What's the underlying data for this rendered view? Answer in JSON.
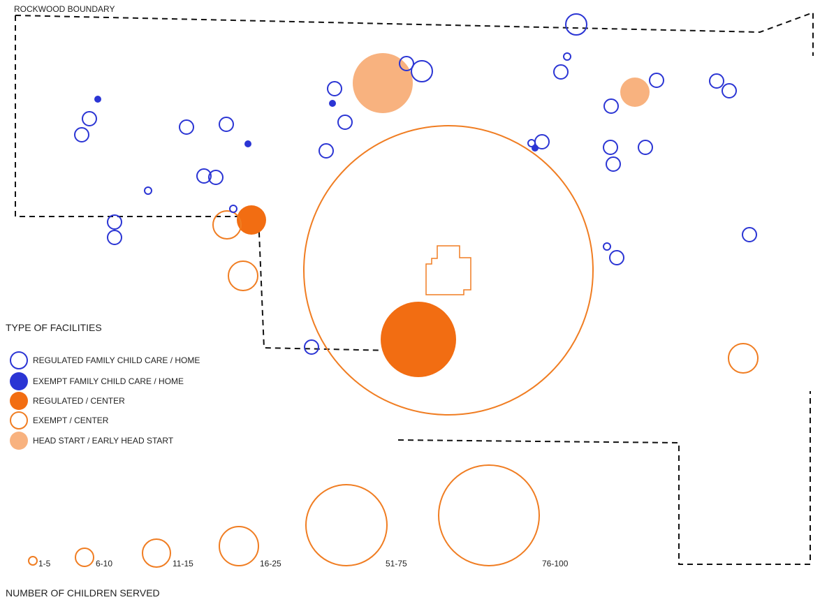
{
  "map": {
    "boundary_label": "ROCKWOOD BOUNDARY"
  },
  "colors": {
    "regulated_home": "#2b35d4",
    "exempt_home": "#2b35d4",
    "regulated_center": "#f26d12",
    "exempt_center": "#f07d22",
    "head_start": "#f8b27f",
    "boundary": "#111111",
    "school": "#f07d22"
  },
  "facility_legend": {
    "title": "TYPE OF FACILITIES",
    "items": [
      {
        "key": "regulated_home",
        "label": "REGULATED FAMILY CHILD CARE / HOME",
        "style": "outline-blue"
      },
      {
        "key": "exempt_home",
        "label": "EXEMPT FAMILY CHILD CARE /  HOME",
        "style": "filled-blue"
      },
      {
        "key": "regulated_center",
        "label": "REGULATED / CENTER",
        "style": "filled-orange"
      },
      {
        "key": "exempt_center",
        "label": "EXEMPT / CENTER",
        "style": "outline-orange"
      },
      {
        "key": "head_start",
        "label": "HEAD START / EARLY HEAD START",
        "style": "filled-peach"
      }
    ]
  },
  "size_legend": {
    "title": "NUMBER OF CHILDREN SERVED",
    "items": [
      {
        "label": "1-5"
      },
      {
        "label": "6-10"
      },
      {
        "label": "11-15"
      },
      {
        "label": "16-25"
      },
      {
        "label": "51-75"
      },
      {
        "label": "76-100"
      }
    ]
  }
}
